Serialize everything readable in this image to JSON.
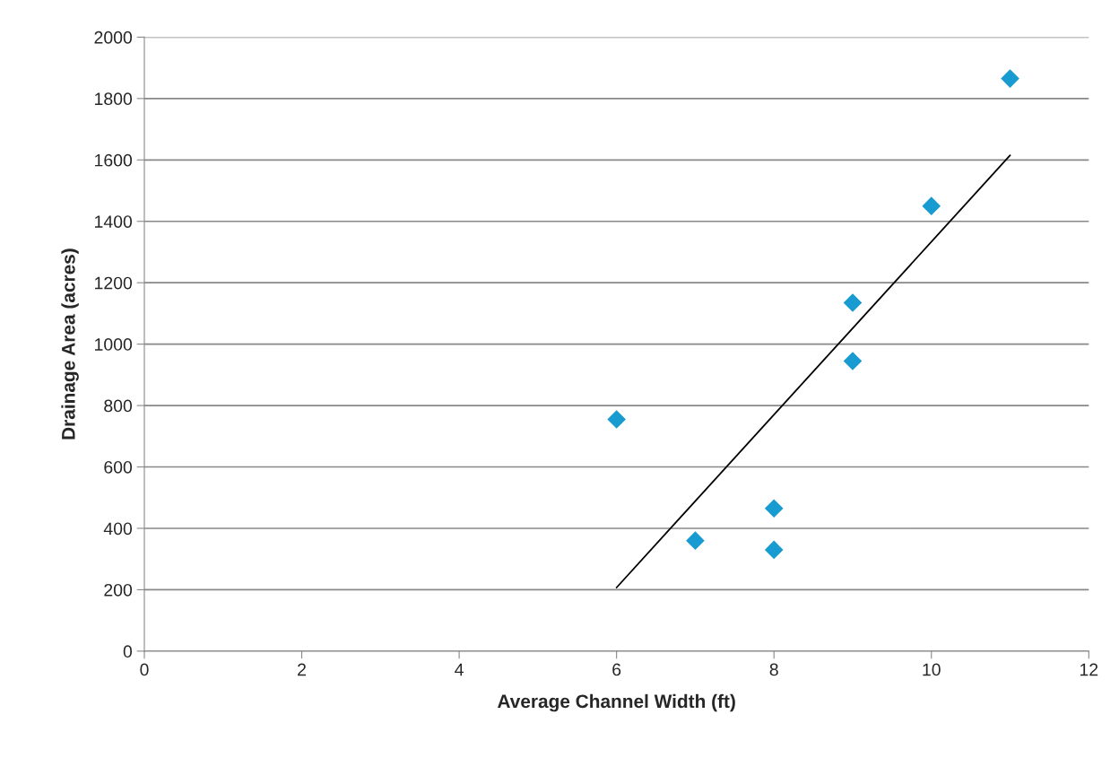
{
  "chart_data": {
    "type": "scatter",
    "xlabel": "Average Channel Width (ft)",
    "ylabel": "Drainage Area (acres)",
    "series": [
      {
        "color": "#179bd1",
        "marker": "diamond",
        "x": [
          6,
          7,
          8,
          8,
          9,
          9,
          10,
          11
        ],
        "values": [
          755,
          360,
          465,
          330,
          1135,
          945,
          1450,
          1865
        ]
      },
      {
        "type": "line",
        "color": "#000000",
        "marker": "none",
        "line_style": "solid",
        "x": [
          6,
          11
        ],
        "values": [
          207,
          1615
        ]
      }
    ],
    "xlim": [
      0,
      12
    ],
    "xticks": [
      0,
      2,
      4,
      6,
      8,
      10,
      12
    ],
    "ylim": [
      0,
      2000
    ],
    "yticks": [
      0,
      200,
      400,
      600,
      800,
      1000,
      1200,
      1400,
      1600,
      1800,
      2000
    ],
    "grid": "y"
  }
}
